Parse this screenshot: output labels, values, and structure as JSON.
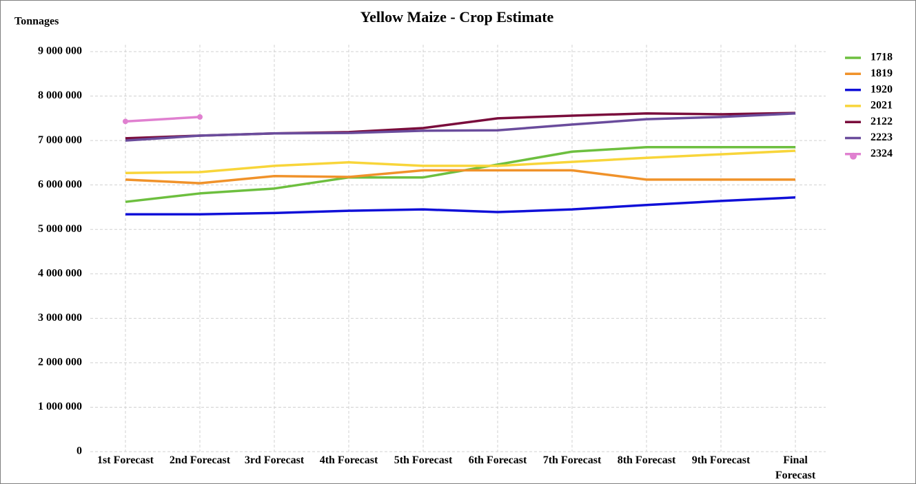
{
  "chart_data": {
    "type": "line",
    "title": "Yellow Maize - Crop Estimate",
    "y_label": "Tonnages",
    "categories": [
      "1st Forecast",
      "2nd Forecast",
      "3rd Forecast",
      "4th Forecast",
      "5th Forecast",
      "6th Forecast",
      "7th Forecast",
      "8th Forecast",
      "9th Forecast",
      "Final Forecast"
    ],
    "series": [
      {
        "name": "1718",
        "color": "#6dbf3f",
        "values": [
          5620000,
          5810000,
          5920000,
          6170000,
          6170000,
          6460000,
          6750000,
          6850000,
          6850000,
          6850000
        ]
      },
      {
        "name": "1819",
        "color": "#f0922a",
        "values": [
          6120000,
          6040000,
          6200000,
          6180000,
          6330000,
          6330000,
          6330000,
          6120000,
          6120000,
          6120000
        ]
      },
      {
        "name": "1920",
        "color": "#1010d8",
        "values": [
          5340000,
          5340000,
          5370000,
          5420000,
          5450000,
          5390000,
          5450000,
          5550000,
          5640000,
          5720000
        ]
      },
      {
        "name": "2021",
        "color": "#f8d53a",
        "values": [
          6270000,
          6290000,
          6430000,
          6510000,
          6430000,
          6430000,
          6520000,
          6610000,
          6690000,
          6770000
        ]
      },
      {
        "name": "2122",
        "color": "#7a0d3c",
        "values": [
          7050000,
          7110000,
          7160000,
          7190000,
          7280000,
          7500000,
          7560000,
          7610000,
          7590000,
          7620000
        ]
      },
      {
        "name": "2223",
        "color": "#6a4c9c",
        "values": [
          7000000,
          7110000,
          7160000,
          7170000,
          7220000,
          7230000,
          7360000,
          7480000,
          7530000,
          7610000
        ]
      },
      {
        "name": "2324",
        "color": "#e080d0",
        "markers": true,
        "values": [
          7430000,
          7530000,
          null,
          null,
          null,
          null,
          null,
          null,
          null,
          null
        ]
      }
    ],
    "ylim": [
      0,
      9000000
    ],
    "yticks": [
      0,
      {
        "value": 1000000,
        "label": "1 000 000"
      },
      {
        "value": 2000000,
        "label": "2 000 000"
      },
      {
        "value": 3000000,
        "label": "3 000 000"
      },
      {
        "value": 4000000,
        "label": "4 000 000"
      },
      {
        "value": 5000000,
        "label": "5 000 000"
      },
      {
        "value": 6000000,
        "label": "6 000 000"
      },
      {
        "value": 7000000,
        "label": "7 000 000"
      },
      {
        "value": 8000000,
        "label": "8 000 000"
      },
      {
        "value": 9000000,
        "label": "9 000 000"
      }
    ],
    "grid": true,
    "legend": "right"
  }
}
